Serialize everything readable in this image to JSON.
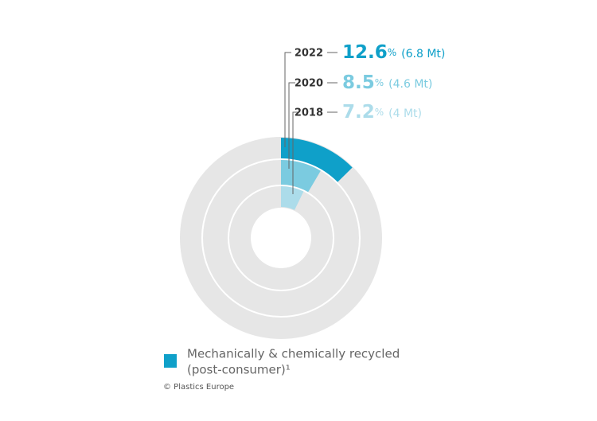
{
  "chart_data": {
    "type": "nested-donut",
    "categories": [
      "2022",
      "2020",
      "2018"
    ],
    "values": [
      12.6,
      8.5,
      7.2
    ],
    "value_labels": [
      "12.6%",
      "8.5%",
      "7.2%"
    ],
    "amount_labels": [
      "(6.8 Mt)",
      "(4.6 Mt)",
      "(4 Mt)"
    ],
    "colors": [
      "#0fa0c9",
      "#7bcbe0",
      "#acdcea"
    ],
    "track_color": "#e6e6e6",
    "legend": {
      "label": "Mechanically & chemically recycled",
      "label_line2": "(post-consumer)¹",
      "color": "#0fa0c9"
    },
    "source": "© Plastics Europe"
  }
}
